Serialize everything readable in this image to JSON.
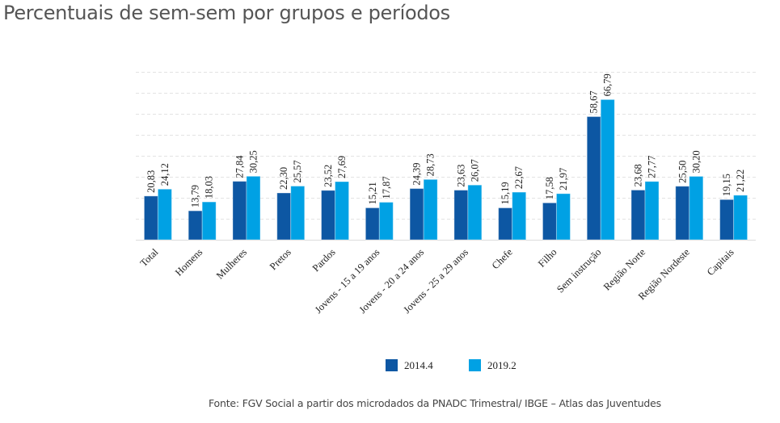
{
  "title": "Percentuais de sem-sem por grupos e períodos",
  "source": "Fonte: FGV Social a partir dos microdados da PNADC Trimestral/ IBGE – Atlas das Juventudes",
  "chart_data": {
    "type": "bar",
    "title": "Percentuais de sem-sem por grupos e períodos",
    "xlabel": "",
    "ylabel": "",
    "ylim": [
      0,
      80
    ],
    "yticks": [
      0,
      10,
      20,
      30,
      40,
      50,
      60,
      70,
      80
    ],
    "grid": true,
    "legend_position": "bottom-center",
    "categories": [
      "Total",
      "Homens",
      "Mulheres",
      "Pretos",
      "Pardos",
      "Jovens - 15 a 19 anos",
      "Jovens - 20 a 24 anos",
      "Jovens - 25 a 29 anos",
      "Chefe",
      "Filho",
      "Sem instrução",
      "Região Norte",
      "Região Nordeste",
      "Capitais"
    ],
    "series": [
      {
        "name": "2014.4",
        "color": "#0d57a3",
        "values": [
          20.83,
          13.79,
          27.84,
          22.3,
          23.52,
          15.21,
          24.39,
          23.63,
          15.19,
          17.58,
          58.67,
          23.68,
          25.5,
          19.15
        ],
        "labels": [
          "20,83",
          "13,79",
          "27,84",
          "22,30",
          "23,52",
          "15,21",
          "24,39",
          "23,63",
          "15,19",
          "17,58",
          "58,67",
          "23,68",
          "25,50",
          "19,15"
        ]
      },
      {
        "name": "2019.2",
        "color": "#00a1e4",
        "values": [
          24.12,
          18.03,
          30.25,
          25.57,
          27.69,
          17.87,
          28.73,
          26.07,
          22.67,
          21.97,
          66.79,
          27.77,
          30.2,
          21.22
        ],
        "labels": [
          "24,12",
          "18,03",
          "30,25",
          "25,57",
          "27,69",
          "17,87",
          "28,73",
          "26,07",
          "22,67",
          "21,97",
          "66,79",
          "27,77",
          "30,20",
          "21,22"
        ]
      }
    ]
  }
}
